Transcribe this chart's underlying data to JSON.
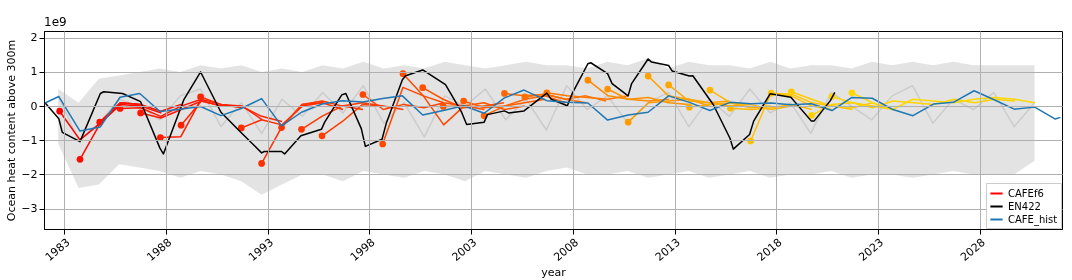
{
  "chart_data": {
    "type": "line",
    "xlabel": "year",
    "ylabel": "Ocean heat content above 300m",
    "annotations": [
      "1e9"
    ],
    "xlim": [
      1982.0,
      2032.05
    ],
    "xticks": [
      1983,
      1988,
      1993,
      1998,
      2003,
      2008,
      2013,
      2018,
      2023,
      2028
    ],
    "ylim": [
      -3.6,
      2.2
    ],
    "yticks": [
      -3,
      -2,
      -1,
      0,
      1,
      2
    ],
    "grid": true,
    "legend": "bottom right",
    "series": [
      {
        "type": "line",
        "color": "#cccccc",
        "x": [
          1982.7,
          1983.7,
          1984.7,
          1985.7,
          1986.7,
          1987.7,
          1988.7,
          1989.7,
          1990.7,
          1991.7,
          1992.7,
          1993.7,
          1994.7,
          1995.7,
          1996.7,
          1997.7,
          1998.7,
          1999.7,
          2000.7,
          2001.7,
          2002.7,
          2003.7,
          2004.7,
          2005.7,
          2006.7,
          2007.7,
          2008.7,
          2009.7,
          2010.7,
          2011.7,
          2012.7,
          2013.7,
          2014.7,
          2015.7,
          2016.7,
          2017.7,
          2018.7,
          2019.7,
          2020.7,
          2021.7,
          2022.7,
          2023.7,
          2024.7,
          2025.7,
          2026.7,
          2027.7,
          2028.7,
          2029.7,
          2030.7
        ],
        "upper": [
          0.5,
          0.1,
          0.8,
          0.9,
          1.0,
          1.1,
          1.0,
          1.2,
          1.1,
          1.2,
          1.0,
          1.1,
          1.0,
          1.2,
          1.1,
          1.3,
          1.1,
          1.2,
          1.1,
          1.3,
          1.2,
          1.1,
          1.2,
          1.3,
          1.2,
          1.2,
          1.1,
          1.3,
          1.2,
          1.4,
          1.1,
          1.3,
          1.2,
          1.2,
          1.1,
          1.3,
          1.1,
          1.2,
          1.2,
          1.1,
          1.3,
          1.2,
          1.3,
          1.2,
          1.3,
          1.2,
          1.2,
          1.2,
          1.2
        ],
        "lower": [
          -1.1,
          -2.4,
          -2.3,
          -1.7,
          -1.8,
          -1.9,
          -2.1,
          -1.9,
          -2.0,
          -2.2,
          -2.6,
          -2.3,
          -2.0,
          -2.0,
          -2.2,
          -1.9,
          -2.0,
          -2.1,
          -1.9,
          -2.0,
          -2.2,
          -1.9,
          -2.0,
          -2.1,
          -1.9,
          -1.8,
          -2.0,
          -2.0,
          -1.9,
          -2.1,
          -2.0,
          -1.9,
          -2.1,
          -2.0,
          -1.9,
          -2.1,
          -2.0,
          -2.0,
          -1.9,
          -2.1,
          -2.0,
          -2.0,
          -2.1,
          -2.0,
          -1.9,
          -2.0,
          -2.0,
          -2.0,
          -1.6
        ],
        "values": [
          0.3,
          -1.0,
          -0.5,
          0.2,
          0.0,
          -0.4,
          0.3,
          0.5,
          -0.6,
          0.1,
          -0.8,
          0.2,
          -0.3,
          0.4,
          -0.2,
          0.6,
          -0.5,
          0.1,
          -0.9,
          0.3,
          0.0,
          0.5,
          -0.4,
          0.2,
          -0.7,
          0.6,
          -0.1,
          0.3,
          -0.5,
          0.1,
          0.4,
          -0.6,
          0.2,
          -0.3,
          0.5,
          -0.2,
          0.1,
          -0.8,
          0.4,
          0.0,
          -0.4,
          0.3,
          0.6,
          -0.5,
          0.2,
          -0.1,
          0.4,
          -0.6,
          0.1
        ]
      },
      {
        "name": "CAFEf6",
        "color": "#ff0000",
        "x": [
          1982.77,
          1983.77,
          1984.77,
          1985.77,
          1986.77
        ],
        "values": [
          -0.15,
          -0.99,
          -0.5,
          0.1,
          0.05
        ]
      },
      {
        "color": "#ff0a00",
        "x": [
          1983.77,
          1984.77,
          1985.77,
          1986.77,
          1987.77
        ],
        "values": [
          -1.56,
          -0.5,
          0.05,
          0.0,
          -0.2
        ]
      },
      {
        "color": "#ff1000",
        "x": [
          1984.74,
          1985.74,
          1986.74,
          1987.74,
          1988.74
        ],
        "values": [
          -0.47,
          0.1,
          0.05,
          -0.15,
          0.05
        ]
      },
      {
        "color": "#ff1400",
        "x": [
          1985.74,
          1986.74,
          1987.74,
          1988.74,
          1989.74
        ],
        "values": [
          -0.07,
          -0.05,
          -0.3,
          0.0,
          0.2
        ]
      },
      {
        "color": "#ff1800",
        "x": [
          1986.75,
          1987.75,
          1988.75,
          1989.75,
          1990.75
        ],
        "values": [
          -0.2,
          -0.35,
          -0.1,
          0.15,
          0.0
        ]
      },
      {
        "color": "#ff1c00",
        "x": [
          1987.72,
          1988.72,
          1989.72,
          1990.72,
          1991.72
        ],
        "values": [
          -0.92,
          -0.9,
          0.2,
          0.05,
          -0.05
        ]
      },
      {
        "color": "#ff2000",
        "x": [
          1988.74,
          1989.74,
          1990.74,
          1991.74,
          1992.74
        ],
        "values": [
          -0.56,
          0.15,
          0.0,
          0.0,
          -0.4
        ]
      },
      {
        "color": "#ff2400",
        "x": [
          1989.7,
          1990.7,
          1991.7,
          1992.7,
          1993.7
        ],
        "values": [
          0.27,
          0.05,
          0.0,
          -0.3,
          -0.45
        ]
      },
      {
        "color": "#ff2c00",
        "x": [
          1991.7,
          1992.7,
          1993.7,
          1994.7,
          1995.7
        ],
        "values": [
          -0.64,
          -0.4,
          -0.55,
          0.0,
          0.1
        ]
      },
      {
        "color": "#ff3000",
        "x": [
          1992.7,
          1993.7,
          1994.7,
          1995.7,
          1996.7
        ],
        "values": [
          -1.68,
          -0.6,
          0.05,
          0.1,
          -0.1
        ]
      },
      {
        "color": "#ff3400",
        "x": [
          1993.68,
          1994.68,
          1995.68,
          1996.68,
          1997.68
        ],
        "values": [
          -0.63,
          0.05,
          0.15,
          0.0,
          -0.1
        ]
      },
      {
        "color": "#ff3800",
        "x": [
          1994.66,
          1995.66,
          1996.66,
          1997.66,
          1998.66
        ],
        "values": [
          -0.68,
          -0.3,
          0.0,
          0.1,
          0.0
        ]
      },
      {
        "color": "#ff3c00",
        "x": [
          1995.67,
          1996.67,
          1997.67,
          1998.67,
          1999.67
        ],
        "values": [
          -0.87,
          -0.45,
          0.05,
          0.0,
          -0.1
        ]
      },
      {
        "color": "#ff4400",
        "x": [
          1997.68,
          1998.68,
          1999.68,
          2000.68,
          2001.68
        ],
        "values": [
          0.34,
          -0.1,
          0.05,
          -0.05,
          0.1
        ]
      },
      {
        "color": "#ff4800",
        "x": [
          1998.65,
          1999.65,
          2000.65,
          2001.65,
          2002.65
        ],
        "values": [
          -1.11,
          0.55,
          0.3,
          -0.55,
          0.0
        ]
      },
      {
        "color": "#ff4c00",
        "x": [
          1999.65,
          2000.65,
          2001.65,
          2002.65,
          2003.65
        ],
        "values": [
          0.95,
          0.3,
          0.1,
          0.0,
          -0.1
        ]
      },
      {
        "color": "#ff5000",
        "x": [
          2000.62,
          2001.62,
          2002.62,
          2003.62,
          2004.62
        ],
        "values": [
          0.54,
          0.2,
          -0.05,
          0.0,
          0.1
        ]
      },
      {
        "color": "#ff5600",
        "x": [
          2001.63,
          2002.63,
          2003.63,
          2004.63,
          2005.63
        ],
        "values": [
          -0.01,
          0.0,
          0.1,
          -0.1,
          0.0
        ]
      },
      {
        "color": "#ff5c00",
        "x": [
          2002.63,
          2003.63,
          2004.63,
          2005.63,
          2006.63
        ],
        "values": [
          0.15,
          -0.05,
          0.0,
          0.1,
          0.2
        ]
      },
      {
        "color": "#ff6200",
        "x": [
          2003.64,
          2004.64,
          2005.64,
          2006.64,
          2007.64
        ],
        "values": [
          -0.28,
          0.0,
          0.2,
          0.3,
          0.1
        ]
      },
      {
        "color": "#ff6800",
        "x": [
          2004.64,
          2005.64,
          2006.64,
          2007.64,
          2008.64
        ],
        "values": [
          0.37,
          0.3,
          0.35,
          0.2,
          0.1
        ]
      },
      {
        "color": "#ff6e00",
        "x": [
          2005.64,
          2006.64,
          2007.64,
          2008.64,
          2009.64
        ],
        "values": [
          0.27,
          0.35,
          0.2,
          0.3,
          0.15
        ]
      },
      {
        "color": "#ff7600",
        "x": [
          2006.72,
          2007.72,
          2008.72,
          2009.72,
          2010.72
        ],
        "values": [
          0.39,
          0.3,
          0.25,
          0.2,
          0.3
        ]
      },
      {
        "color": "#ff8a00",
        "x": [
          2008.74,
          2009.74,
          2010.74,
          2011.74,
          2012.74
        ],
        "values": [
          0.76,
          0.3,
          0.2,
          0.15,
          0.2
        ]
      },
      {
        "color": "#ff9200",
        "x": [
          2009.71,
          2010.71,
          2011.71,
          2012.71,
          2013.71
        ],
        "values": [
          0.5,
          0.2,
          0.25,
          0.1,
          0.05
        ]
      },
      {
        "color": "#ff9a00",
        "x": [
          2010.72,
          2011.72,
          2012.72,
          2013.72,
          2014.72
        ],
        "values": [
          -0.47,
          0.1,
          0.15,
          0.2,
          0.0
        ]
      },
      {
        "color": "#ffa200",
        "x": [
          2011.7,
          2012.7,
          2013.7,
          2014.7,
          2015.7
        ],
        "values": [
          0.88,
          0.3,
          0.2,
          0.1,
          0.15
        ]
      },
      {
        "color": "#ffa800",
        "x": [
          2012.71,
          2013.71,
          2014.71,
          2015.71,
          2016.71
        ],
        "values": [
          0.62,
          0.15,
          0.1,
          0.0,
          0.05
        ]
      },
      {
        "color": "#ffae00",
        "x": [
          2013.73,
          2014.73,
          2015.73,
          2016.73,
          2017.73
        ],
        "values": [
          -0.03,
          0.05,
          0.1,
          -0.05,
          0.0
        ]
      },
      {
        "color": "#ffb400",
        "x": [
          2014.74,
          2015.74,
          2016.74,
          2017.74,
          2018.74
        ],
        "values": [
          0.47,
          0.1,
          0.05,
          -0.1,
          0.0
        ]
      },
      {
        "color": "#ffba00",
        "x": [
          2015.75,
          2016.75,
          2017.75,
          2018.75,
          2019.75
        ],
        "values": [
          -0.06,
          -0.1,
          -0.05,
          0.05,
          -0.1
        ]
      },
      {
        "color": "#ffc000",
        "x": [
          2016.74,
          2017.74,
          2018.74,
          2019.74,
          2020.74
        ],
        "values": [
          -1.02,
          0.38,
          0.3,
          0.0,
          -0.1
        ]
      },
      {
        "color": "#ffc600",
        "x": [
          2017.75,
          2018.75,
          2019.75,
          2020.75,
          2021.75
        ],
        "values": [
          0.38,
          0.35,
          0.1,
          0.0,
          -0.1
        ]
      },
      {
        "color": "#ffcc00",
        "x": [
          2018.74,
          2019.74,
          2020.74,
          2021.74,
          2022.74
        ],
        "values": [
          0.42,
          0.2,
          0.0,
          -0.05,
          0.1
        ]
      },
      {
        "color": "#ffd000",
        "x": [
          2019.74,
          2020.74,
          2021.74,
          2022.74,
          2023.74
        ],
        "values": [
          -0.27,
          0.05,
          0.1,
          0.0,
          -0.1
        ]
      },
      {
        "color": "#ffd400",
        "x": [
          2020.74,
          2021.74,
          2022.74,
          2023.74,
          2024.74,
          2025.74,
          2026.74,
          2027.74,
          2028.74,
          2029.74
        ],
        "values": [
          0.28,
          0.1,
          -0.05,
          0.15,
          0.1,
          0.05,
          0.2,
          0.1,
          0.2,
          0.15
        ]
      },
      {
        "color": "#ffd800",
        "x": [
          2021.72,
          2022.72,
          2023.72,
          2024.72,
          2025.72,
          2026.72,
          2027.72,
          2028.72,
          2029.72,
          2030.72
        ],
        "values": [
          0.39,
          0.1,
          -0.1,
          0.2,
          0.15,
          0.1,
          0.2,
          0.25,
          0.2,
          0.1
        ]
      },
      {
        "type": "scatter",
        "marker": "circle",
        "x": [
          1982.77,
          1983.77,
          1984.74,
          1985.74,
          1986.75,
          1987.72,
          1988.74,
          1989.7,
          1991.7,
          1992.7,
          1993.68,
          1994.66,
          1995.67,
          1997.68,
          1998.65,
          1999.65,
          2000.62,
          2001.63,
          2002.63,
          2003.64,
          2004.64,
          2005.64,
          2006.72,
          2008.74,
          2009.71,
          2010.72,
          2011.7,
          2012.71,
          2013.73,
          2014.74,
          2015.75,
          2016.74,
          2017.75,
          2018.74,
          2019.74,
          2020.74,
          2021.72
        ],
        "values": [
          -0.15,
          -1.56,
          -0.47,
          -0.07,
          -0.2,
          -0.92,
          -0.56,
          0.27,
          -0.64,
          -1.68,
          -0.63,
          -0.68,
          -0.87,
          0.34,
          -1.11,
          0.95,
          0.54,
          -0.01,
          0.15,
          -0.28,
          0.37,
          0.27,
          0.39,
          0.76,
          0.5,
          -0.47,
          0.88,
          0.62,
          -0.03,
          0.47,
          -0.06,
          -1.02,
          0.38,
          0.42,
          -0.27,
          0.28,
          0.39
        ],
        "colors": [
          "#ff0000",
          "#ff0a00",
          "#ff1000",
          "#ff1400",
          "#ff1800",
          "#ff1c00",
          "#ff2000",
          "#ff2400",
          "#ff2c00",
          "#ff3000",
          "#ff3400",
          "#ff3800",
          "#ff3c00",
          "#ff4400",
          "#ff4800",
          "#ff4c00",
          "#ff5000",
          "#ff5600",
          "#ff5c00",
          "#ff6200",
          "#ff6800",
          "#ff6e00",
          "#ff7600",
          "#ff8a00",
          "#ff9200",
          "#ff9a00",
          "#ffa200",
          "#ffa800",
          "#ffae00",
          "#ffb400",
          "#ffba00",
          "#ffc000",
          "#ffc600",
          "#ffcc00",
          "#ffd000",
          "#ffd400",
          "#ffd800"
        ]
      },
      {
        "name": "EN422",
        "color": "#000000",
        "x": [
          1982.05,
          1982.73,
          1982.9,
          1983.77,
          1984.77,
          1984.94,
          1985.86,
          1986.75,
          1987.7,
          1987.87,
          1988.87,
          1989.7,
          1990.7,
          1991.7,
          1992.7,
          1992.83,
          1993.68,
          1993.83,
          1994.63,
          1995.64,
          1995.8,
          1996.64,
          1996.84,
          1997.6,
          1997.8,
          1998.62,
          1998.82,
          1999.62,
          1999.78,
          2000.62,
          2001.74,
          2002.53,
          2002.78,
          2003.64,
          2003.8,
          2004.64,
          2004.84,
          2005.6,
          2006.72,
          2006.94,
          2007.73,
          2007.98,
          2008.74,
          2008.88,
          2009.71,
          2009.93,
          2010.72,
          2010.89,
          2011.7,
          2011.87,
          2012.71,
          2012.88,
          2013.73,
          2013.9,
          2014.91,
          2015.73,
          2015.89,
          2016.69,
          2016.89,
          2017.7,
          2018.72,
          2019.73,
          2019.86,
          2020.66,
          2020.88
        ],
        "values": [
          0.1,
          -0.37,
          -0.77,
          -1.04,
          0.37,
          0.42,
          0.37,
          0.13,
          -1.23,
          -1.4,
          0.18,
          1.0,
          -0.18,
          -0.78,
          -1.37,
          -1.33,
          -1.33,
          -1.4,
          -0.87,
          -0.68,
          -0.47,
          0.33,
          0.37,
          -0.66,
          -1.18,
          -0.97,
          -0.52,
          0.77,
          0.89,
          1.06,
          0.63,
          -0.18,
          -0.54,
          -0.47,
          -0.25,
          -0.14,
          -0.2,
          -0.14,
          0.38,
          0.2,
          0.01,
          0.38,
          1.24,
          1.27,
          0.95,
          0.66,
          0.3,
          0.66,
          1.38,
          1.29,
          1.19,
          1.03,
          0.88,
          0.89,
          0.04,
          -0.95,
          -1.26,
          -0.83,
          -0.44,
          0.36,
          0.26,
          -0.44,
          -0.44,
          0.16,
          0.4
        ]
      },
      {
        "name": "CAFE_hist",
        "color": "#1f77b4",
        "x": [
          1982.05,
          1982.73,
          1983.77,
          1984.77,
          1985.74,
          1986.71,
          1987.7,
          1988.7,
          1989.7,
          1990.7,
          1991.7,
          1992.7,
          1993.68,
          1994.66,
          1995.67,
          1996.67,
          1997.68,
          1998.65,
          1999.62,
          2000.62,
          2001.63,
          2002.63,
          2003.64,
          2004.64,
          2005.6,
          2006.72,
          2007.73,
          2008.74,
          2009.71,
          2010.72,
          2011.7,
          2012.71,
          2013.73,
          2014.74,
          2015.73,
          2016.74,
          2017.75,
          2018.72,
          2019.73,
          2020.74,
          2021.7,
          2022.72,
          2023.7,
          2024.72,
          2025.73,
          2026.71,
          2027.73,
          2028.74,
          2029.7,
          2030.71,
          2031.72,
          2031.97
        ],
        "values": [
          0.09,
          0.28,
          -0.73,
          -0.61,
          0.26,
          0.37,
          -0.16,
          -0.09,
          -0.01,
          -0.28,
          -0.07,
          0.22,
          -0.58,
          -0.18,
          0.06,
          0.16,
          0.12,
          0.22,
          0.3,
          -0.26,
          -0.13,
          0.01,
          -0.21,
          0.24,
          0.47,
          0.16,
          0.11,
          0.09,
          -0.41,
          -0.26,
          -0.18,
          0.3,
          0.11,
          -0.13,
          0.11,
          0.07,
          0.09,
          0.04,
          0.07,
          -0.13,
          0.25,
          0.23,
          -0.09,
          -0.28,
          0.06,
          0.11,
          0.45,
          0.18,
          -0.09,
          -0.03,
          -0.38,
          -0.33
        ]
      }
    ]
  }
}
